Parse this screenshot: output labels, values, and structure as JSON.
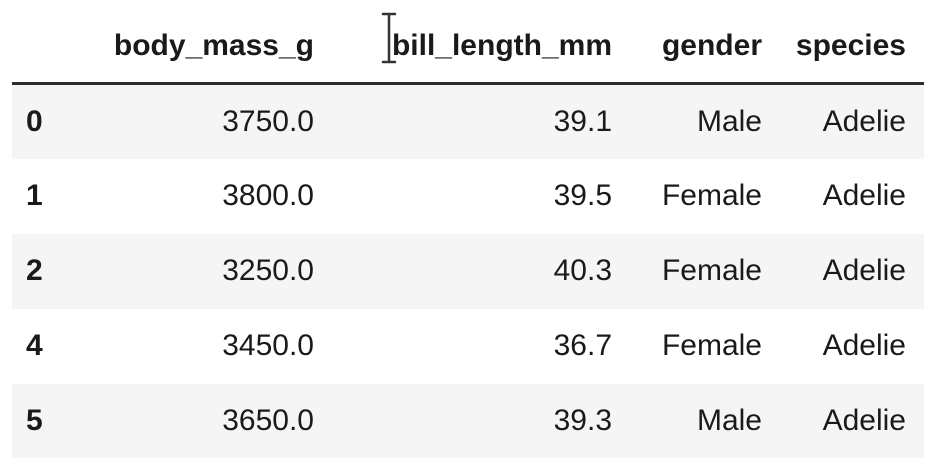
{
  "table": {
    "columns": [
      {
        "key": "index",
        "label": ""
      },
      {
        "key": "body_mass_g",
        "label": "body_mass_g"
      },
      {
        "key": "bill_length_mm",
        "label": "bill_length_mm"
      },
      {
        "key": "gender",
        "label": "gender"
      },
      {
        "key": "species",
        "label": "species"
      }
    ],
    "rows": [
      {
        "index": "0",
        "body_mass_g": "3750.0",
        "bill_length_mm": "39.1",
        "gender": "Male",
        "species": "Adelie"
      },
      {
        "index": "1",
        "body_mass_g": "3800.0",
        "bill_length_mm": "39.5",
        "gender": "Female",
        "species": "Adelie"
      },
      {
        "index": "2",
        "body_mass_g": "3250.0",
        "bill_length_mm": "40.3",
        "gender": "Female",
        "species": "Adelie"
      },
      {
        "index": "4",
        "body_mass_g": "3450.0",
        "bill_length_mm": "36.7",
        "gender": "Female",
        "species": "Adelie"
      },
      {
        "index": "5",
        "body_mass_g": "3650.0",
        "bill_length_mm": "39.3",
        "gender": "Male",
        "species": "Adelie"
      }
    ]
  },
  "cursor": {
    "icon": "text-cursor-icon"
  }
}
